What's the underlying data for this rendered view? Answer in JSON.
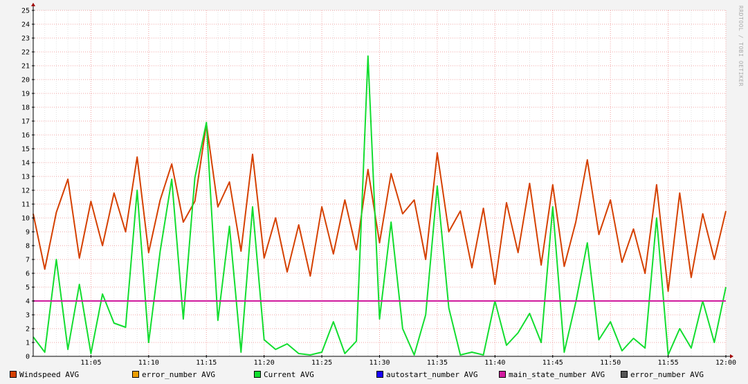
{
  "watermark": "RRDTOOL / TOBI OETIKER",
  "chart_data": {
    "type": "line",
    "xlabel": "",
    "ylabel": "",
    "ylim": [
      0,
      25
    ],
    "y_ticks": [
      0,
      1,
      2,
      3,
      4,
      5,
      6,
      7,
      8,
      9,
      10,
      11,
      12,
      13,
      14,
      15,
      16,
      17,
      18,
      19,
      20,
      21,
      22,
      23,
      24,
      25
    ],
    "xlim": [
      "11:00",
      "12:00"
    ],
    "x_ticks": [
      "11:05",
      "11:10",
      "11:15",
      "11:20",
      "11:25",
      "11:30",
      "11:35",
      "11:40",
      "11:45",
      "11:50",
      "11:55",
      "12:00"
    ],
    "grid": true,
    "legend": "bottom",
    "series": [
      {
        "name": "Windspeed AVG",
        "color": "#d54000",
        "points": [
          [
            "11:00",
            10.3
          ],
          [
            "11:01",
            6.3
          ],
          [
            "11:02",
            10.4
          ],
          [
            "11:03",
            12.8
          ],
          [
            "11:04",
            7.1
          ],
          [
            "11:05",
            11.2
          ],
          [
            "11:06",
            8.0
          ],
          [
            "11:07",
            11.8
          ],
          [
            "11:08",
            9.0
          ],
          [
            "11:09",
            14.4
          ],
          [
            "11:10",
            7.5
          ],
          [
            "11:11",
            11.3
          ],
          [
            "11:12",
            13.9
          ],
          [
            "11:13",
            9.7
          ],
          [
            "11:14",
            11.2
          ],
          [
            "11:15",
            16.8
          ],
          [
            "11:16",
            10.8
          ],
          [
            "11:17",
            12.6
          ],
          [
            "11:18",
            7.6
          ],
          [
            "11:19",
            14.6
          ],
          [
            "11:20",
            7.1
          ],
          [
            "11:21",
            10.0
          ],
          [
            "11:22",
            6.1
          ],
          [
            "11:23",
            9.5
          ],
          [
            "11:24",
            5.8
          ],
          [
            "11:25",
            10.8
          ],
          [
            "11:26",
            7.4
          ],
          [
            "11:27",
            11.3
          ],
          [
            "11:28",
            7.7
          ],
          [
            "11:29",
            13.5
          ],
          [
            "11:30",
            8.2
          ],
          [
            "11:31",
            13.2
          ],
          [
            "11:32",
            10.3
          ],
          [
            "11:33",
            11.3
          ],
          [
            "11:34",
            7.0
          ],
          [
            "11:35",
            14.7
          ],
          [
            "11:36",
            9.0
          ],
          [
            "11:37",
            10.5
          ],
          [
            "11:38",
            6.4
          ],
          [
            "11:39",
            10.7
          ],
          [
            "11:40",
            5.2
          ],
          [
            "11:41",
            11.1
          ],
          [
            "11:42",
            7.5
          ],
          [
            "11:43",
            12.5
          ],
          [
            "11:44",
            6.6
          ],
          [
            "11:45",
            12.4
          ],
          [
            "11:46",
            6.5
          ],
          [
            "11:47",
            9.7
          ],
          [
            "11:48",
            14.2
          ],
          [
            "11:49",
            8.8
          ],
          [
            "11:50",
            11.3
          ],
          [
            "11:51",
            6.8
          ],
          [
            "11:52",
            9.2
          ],
          [
            "11:53",
            6.0
          ],
          [
            "11:54",
            12.4
          ],
          [
            "11:55",
            4.7
          ],
          [
            "11:56",
            11.8
          ],
          [
            "11:57",
            5.7
          ],
          [
            "11:58",
            10.3
          ],
          [
            "11:59",
            7.0
          ],
          [
            "12:00",
            10.5
          ]
        ]
      },
      {
        "name": "error_number AVG",
        "color": "#ec9d00",
        "points": []
      },
      {
        "name": "Current AVG",
        "color": "#12dd2f",
        "points": [
          [
            "11:00",
            1.4
          ],
          [
            "11:01",
            0.3
          ],
          [
            "11:02",
            7.0
          ],
          [
            "11:03",
            0.5
          ],
          [
            "11:04",
            5.2
          ],
          [
            "11:05",
            0.2
          ],
          [
            "11:06",
            4.5
          ],
          [
            "11:07",
            2.4
          ],
          [
            "11:08",
            2.1
          ],
          [
            "11:09",
            12.0
          ],
          [
            "11:10",
            1.0
          ],
          [
            "11:11",
            7.6
          ],
          [
            "11:12",
            12.8
          ],
          [
            "11:13",
            2.7
          ],
          [
            "11:14",
            12.9
          ],
          [
            "11:15",
            16.9
          ],
          [
            "11:16",
            2.6
          ],
          [
            "11:17",
            9.4
          ],
          [
            "11:18",
            0.3
          ],
          [
            "11:19",
            10.8
          ],
          [
            "11:20",
            1.2
          ],
          [
            "11:21",
            0.5
          ],
          [
            "11:22",
            0.9
          ],
          [
            "11:23",
            0.2
          ],
          [
            "11:24",
            0.1
          ],
          [
            "11:25",
            0.3
          ],
          [
            "11:26",
            2.5
          ],
          [
            "11:27",
            0.2
          ],
          [
            "11:28",
            1.1
          ],
          [
            "11:29",
            21.7
          ],
          [
            "11:30",
            2.7
          ],
          [
            "11:31",
            9.7
          ],
          [
            "11:32",
            2.0
          ],
          [
            "11:33",
            0.1
          ],
          [
            "11:34",
            3.0
          ],
          [
            "11:35",
            12.3
          ],
          [
            "11:36",
            3.5
          ],
          [
            "11:37",
            0.1
          ],
          [
            "11:38",
            0.3
          ],
          [
            "11:39",
            0.1
          ],
          [
            "11:40",
            4.0
          ],
          [
            "11:41",
            0.8
          ],
          [
            "11:42",
            1.7
          ],
          [
            "11:43",
            3.1
          ],
          [
            "11:44",
            1.0
          ],
          [
            "11:45",
            10.8
          ],
          [
            "11:46",
            0.3
          ],
          [
            "11:47",
            3.9
          ],
          [
            "11:48",
            8.2
          ],
          [
            "11:49",
            1.2
          ],
          [
            "11:50",
            2.5
          ],
          [
            "11:51",
            0.4
          ],
          [
            "11:52",
            1.3
          ],
          [
            "11:53",
            0.6
          ],
          [
            "11:54",
            10.0
          ],
          [
            "11:55",
            0.1
          ],
          [
            "11:56",
            2.0
          ],
          [
            "11:57",
            0.6
          ],
          [
            "11:58",
            4.0
          ],
          [
            "11:59",
            1.0
          ],
          [
            "12:00",
            5.0
          ]
        ]
      },
      {
        "name": "autostart_number AVG",
        "color": "#1a00ff",
        "points": []
      },
      {
        "name": "main_state_number AVG",
        "color": "#d01b9e",
        "points": [
          [
            "11:00",
            4.0
          ],
          [
            "12:00",
            4.0
          ]
        ]
      },
      {
        "name": "error_number AVG",
        "color": "#555555",
        "points": []
      }
    ]
  }
}
